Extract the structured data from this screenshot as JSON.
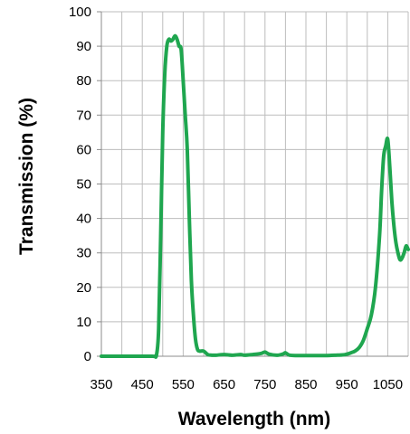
{
  "chart_data": {
    "type": "line",
    "xlabel": "Wavelength  (nm)",
    "ylabel": "Transmission  (%)",
    "xlim": [
      350,
      1100
    ],
    "ylim": [
      0,
      100
    ],
    "grid": true,
    "x_ticks": [
      350,
      400,
      450,
      500,
      550,
      600,
      650,
      700,
      750,
      800,
      850,
      900,
      950,
      1000,
      1050,
      1100
    ],
    "x_tick_labels": [
      {
        "value": 350,
        "label": "350"
      },
      {
        "value": 450,
        "label": "450"
      },
      {
        "value": 550,
        "label": "550"
      },
      {
        "value": 650,
        "label": "650"
      },
      {
        "value": 750,
        "label": "750"
      },
      {
        "value": 850,
        "label": "850"
      },
      {
        "value": 950,
        "label": "950"
      },
      {
        "value": 1050,
        "label": "1050"
      }
    ],
    "y_ticks": [
      0,
      10,
      20,
      30,
      40,
      50,
      60,
      70,
      80,
      90,
      100
    ],
    "y_tick_labels": [
      "0",
      "10",
      "20",
      "30",
      "40",
      "50",
      "60",
      "70",
      "80",
      "90",
      "100"
    ],
    "series": [
      {
        "color": "#1fa64f",
        "x": [
          350,
          400,
          450,
          470,
          475,
          480,
          485,
          490,
          495,
          500,
          505,
          510,
          515,
          520,
          525,
          530,
          535,
          540,
          545,
          550,
          555,
          560,
          565,
          570,
          575,
          580,
          585,
          590,
          600,
          610,
          620,
          630,
          650,
          670,
          690,
          700,
          720,
          740,
          750,
          760,
          780,
          795,
          800,
          810,
          830,
          850,
          880,
          900,
          920,
          940,
          950,
          960,
          970,
          980,
          990,
          1000,
          1010,
          1020,
          1030,
          1035,
          1040,
          1045,
          1050,
          1055,
          1060,
          1065,
          1070,
          1075,
          1080,
          1085,
          1090,
          1095,
          1100
        ],
        "y": [
          0,
          0,
          0,
          0,
          0,
          0,
          0.5,
          8,
          35,
          65,
          82,
          90,
          92,
          91.5,
          92,
          93,
          92,
          90,
          89,
          80,
          70,
          60,
          40,
          22,
          12,
          5,
          2,
          1.5,
          1.5,
          0.5,
          0.3,
          0.3,
          0.5,
          0.3,
          0.5,
          0.3,
          0.5,
          0.8,
          1.2,
          0.6,
          0.3,
          0.7,
          1.0,
          0.3,
          0.2,
          0.2,
          0.2,
          0.2,
          0.3,
          0.4,
          0.6,
          1,
          1.5,
          2.5,
          4.5,
          8,
          12,
          20,
          35,
          48,
          58,
          61,
          63,
          55,
          45,
          38,
          33,
          30,
          28,
          28.5,
          30,
          32,
          31
        ]
      }
    ]
  }
}
